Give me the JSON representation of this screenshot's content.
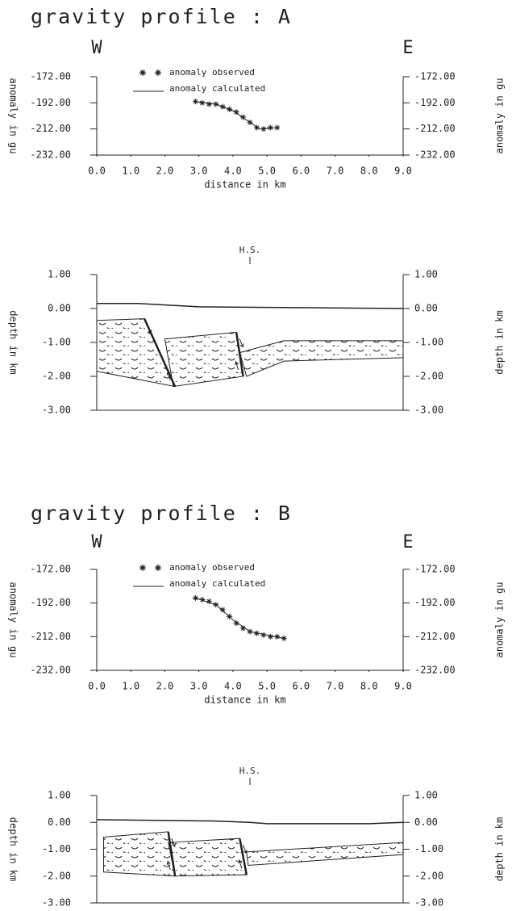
{
  "chart_data": [
    {
      "type": "line",
      "title": "gravity profile :  A",
      "left_label": "W",
      "right_label": "E",
      "xlabel": "distance in km",
      "ylabel": "anomaly in gu",
      "xlim": [
        0,
        9
      ],
      "xticks": [
        {
          "value": 0,
          "label": "0.0"
        },
        {
          "value": 1,
          "label": "1.0"
        },
        {
          "value": 2,
          "label": "2.0"
        },
        {
          "value": 3,
          "label": "3.0"
        },
        {
          "value": 4,
          "label": "4.0"
        },
        {
          "value": 5,
          "label": "5.0"
        },
        {
          "value": 6,
          "label": "6.0"
        },
        {
          "value": 7,
          "label": "7.0"
        },
        {
          "value": 8,
          "label": "8.0"
        },
        {
          "value": 9,
          "label": "9.0"
        }
      ],
      "ylim": [
        -232,
        -172
      ],
      "yticks": [
        {
          "value": -172,
          "label": "-172.00"
        },
        {
          "value": -192,
          "label": "-192.00"
        },
        {
          "value": -212,
          "label": "-212.00"
        },
        {
          "value": -232,
          "label": "-232.00"
        }
      ],
      "series": [
        {
          "name": "anomaly observed",
          "marker": "star",
          "color": "#222",
          "x": [
            2.9,
            3.1,
            3.3,
            3.5,
            3.7,
            3.9,
            4.1,
            4.3,
            4.5,
            4.7,
            4.9,
            5.1,
            5.3
          ],
          "values": [
            -191,
            -192,
            -193,
            -193,
            -195,
            -197,
            -199,
            -203,
            -207,
            -211,
            -212,
            -211,
            -211
          ]
        },
        {
          "name": "anomaly calculated",
          "color": "#222",
          "x": [
            2.9,
            3.5,
            4.0,
            4.5,
            4.8,
            5.3
          ],
          "values": [
            -191,
            -193,
            -198,
            -207,
            -212,
            -211
          ]
        }
      ]
    },
    {
      "type": "section",
      "ylabel": "depth in km",
      "annotation": {
        "text": "H.S.",
        "x": 4.5
      },
      "xlim": [
        0,
        9
      ],
      "ylim": [
        -3,
        1
      ],
      "yticks": [
        {
          "value": 1,
          "label": "1.00"
        },
        {
          "value": 0,
          "label": "0.00"
        },
        {
          "value": -1,
          "label": "-1.00"
        },
        {
          "value": -2,
          "label": "-2.00"
        },
        {
          "value": -3,
          "label": "-3.00"
        }
      ],
      "surface": {
        "x": [
          0,
          1.2,
          3,
          9
        ],
        "values": [
          0.15,
          0.15,
          0.05,
          0
        ]
      },
      "blocks": [
        {
          "x": [
            0,
            1.4,
            2.3,
            0
          ],
          "values": [
            -0.35,
            -0.3,
            -2.3,
            -1.85
          ]
        },
        {
          "x": [
            2.0,
            4.1,
            4.3,
            2.25
          ],
          "values": [
            -0.9,
            -0.7,
            -2.0,
            -2.3
          ]
        },
        {
          "x": [
            4.2,
            5.5,
            9,
            9,
            5.5,
            4.4
          ],
          "values": [
            -1.3,
            -0.95,
            -0.95,
            -1.45,
            -1.55,
            -2.0
          ]
        }
      ]
    },
    {
      "type": "line",
      "title": "gravity profile :  B",
      "left_label": "W",
      "right_label": "E",
      "xlabel": "distance in km",
      "ylabel": "anomaly in gu",
      "xlim": [
        0,
        9
      ],
      "xticks": [
        {
          "value": 0,
          "label": "0.0"
        },
        {
          "value": 1,
          "label": "1.0"
        },
        {
          "value": 2,
          "label": "2.0"
        },
        {
          "value": 3,
          "label": "3.0"
        },
        {
          "value": 4,
          "label": "4.0"
        },
        {
          "value": 5,
          "label": "5.0"
        },
        {
          "value": 6,
          "label": "6.0"
        },
        {
          "value": 7,
          "label": "7.0"
        },
        {
          "value": 8,
          "label": "8.0"
        },
        {
          "value": 9,
          "label": "9.0"
        }
      ],
      "ylim": [
        -232,
        -172
      ],
      "yticks": [
        {
          "value": -172,
          "label": "-172.00"
        },
        {
          "value": -192,
          "label": "-192.00"
        },
        {
          "value": -212,
          "label": "-212.00"
        },
        {
          "value": -232,
          "label": "-232.00"
        }
      ],
      "series": [
        {
          "name": "anomaly observed",
          "marker": "star",
          "color": "#222",
          "x": [
            2.9,
            3.1,
            3.3,
            3.5,
            3.7,
            3.9,
            4.1,
            4.3,
            4.5,
            4.7,
            4.9,
            5.1,
            5.3,
            5.5
          ],
          "values": [
            -189,
            -190,
            -191,
            -193,
            -196,
            -200,
            -204,
            -207,
            -209,
            -210,
            -211,
            -212,
            -212,
            -213
          ]
        },
        {
          "name": "anomaly calculated",
          "color": "#222",
          "x": [
            2.9,
            3.5,
            4.0,
            4.5,
            5.0,
            5.5
          ],
          "values": [
            -189,
            -193,
            -202,
            -209,
            -211,
            -213
          ]
        }
      ]
    },
    {
      "type": "section",
      "ylabel": "depth in km",
      "annotation": {
        "text": "H.S.",
        "x": 4.5
      },
      "xlim": [
        0,
        9
      ],
      "ylim": [
        -3,
        1
      ],
      "yticks": [
        {
          "value": 1,
          "label": "1.00"
        },
        {
          "value": 0,
          "label": "0.00"
        },
        {
          "value": -1,
          "label": "-1.00"
        },
        {
          "value": -2,
          "label": "-2.00"
        },
        {
          "value": -3,
          "label": "-3.00"
        }
      ],
      "surface": {
        "x": [
          0,
          3.5,
          4.5,
          5,
          8,
          9
        ],
        "values": [
          0.1,
          0.05,
          0,
          -0.05,
          -0.05,
          0
        ]
      },
      "blocks": [
        {
          "x": [
            0.2,
            2.1,
            2.3,
            0.2
          ],
          "values": [
            -0.55,
            -0.35,
            -2.0,
            -1.85
          ]
        },
        {
          "x": [
            2.1,
            4.2,
            4.4,
            2.3
          ],
          "values": [
            -0.75,
            -0.6,
            -1.95,
            -2.0
          ]
        },
        {
          "x": [
            4.4,
            9,
            9,
            4.45
          ],
          "values": [
            -1.1,
            -0.75,
            -1.2,
            -1.6
          ]
        }
      ]
    }
  ]
}
